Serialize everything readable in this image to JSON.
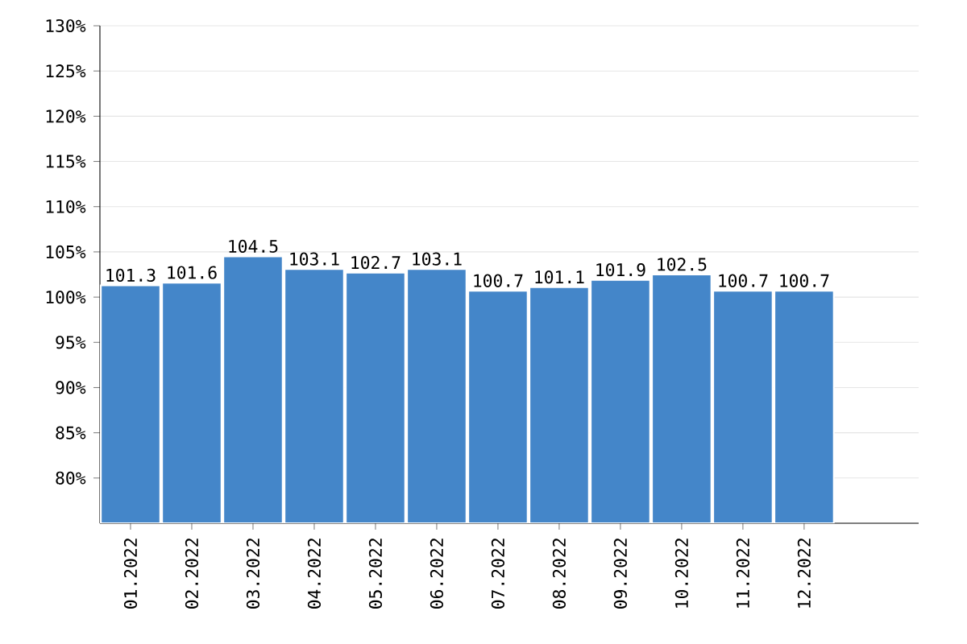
{
  "chart_data": {
    "type": "bar",
    "categories": [
      "01.2022",
      "02.2022",
      "03.2022",
      "04.2022",
      "05.2022",
      "06.2022",
      "07.2022",
      "08.2022",
      "09.2022",
      "10.2022",
      "11.2022",
      "12.2022"
    ],
    "values": [
      101.3,
      101.6,
      104.5,
      103.1,
      102.7,
      103.1,
      100.7,
      101.1,
      101.9,
      102.5,
      100.7,
      100.7
    ],
    "color": "#4486c9",
    "ylim": [
      75,
      130
    ],
    "yticks": [
      {
        "value": 80,
        "label": "80%"
      },
      {
        "value": 85,
        "label": "85%"
      },
      {
        "value": 90,
        "label": "90%"
      },
      {
        "value": 95,
        "label": "95%"
      },
      {
        "value": 100,
        "label": "100%"
      },
      {
        "value": 105,
        "label": "105%"
      },
      {
        "value": 110,
        "label": "110%"
      },
      {
        "value": 115,
        "label": "115%"
      },
      {
        "value": 120,
        "label": "120%"
      },
      {
        "value": 125,
        "label": "125%"
      },
      {
        "value": 130,
        "label": "130%"
      }
    ],
    "grid": "y",
    "data_labels": true
  }
}
